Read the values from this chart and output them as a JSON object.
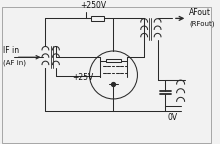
{
  "bg_color": "#f2f2f2",
  "line_color": "#2a2a2a",
  "text_color": "#111111",
  "labels": {
    "plus250v": "+250V",
    "plus25v": "+25V",
    "afout": "AFout",
    "rfout": "(RFout)",
    "ifin": "IF in",
    "afin": "(AF in)",
    "zerov": "0V"
  },
  "figsize": [
    2.2,
    1.44
  ],
  "dpi": 100
}
